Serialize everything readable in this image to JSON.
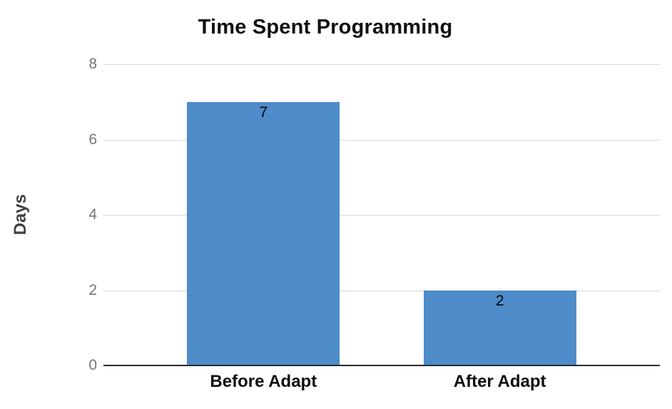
{
  "chart_data": {
    "type": "bar",
    "title": "Time Spent Programming",
    "categories": [
      "Before Adapt",
      "After Adapt"
    ],
    "values": [
      7,
      2
    ],
    "data_labels": [
      "7",
      "2"
    ],
    "xlabel": "",
    "ylabel": "Days",
    "ylim": [
      0,
      8
    ],
    "yticks": [
      0,
      2,
      4,
      6,
      8
    ],
    "grid": true,
    "legend": false,
    "colors": {
      "bar": "#4d8bc9",
      "gridline": "#d9d9d9",
      "axis_line": "#2b2b2b",
      "tick_label": "#757575",
      "axis_title": "#424242",
      "title": "#111111",
      "category_label": "#0d0d0d",
      "data_label": "#000000",
      "background": "#ffffff"
    }
  }
}
